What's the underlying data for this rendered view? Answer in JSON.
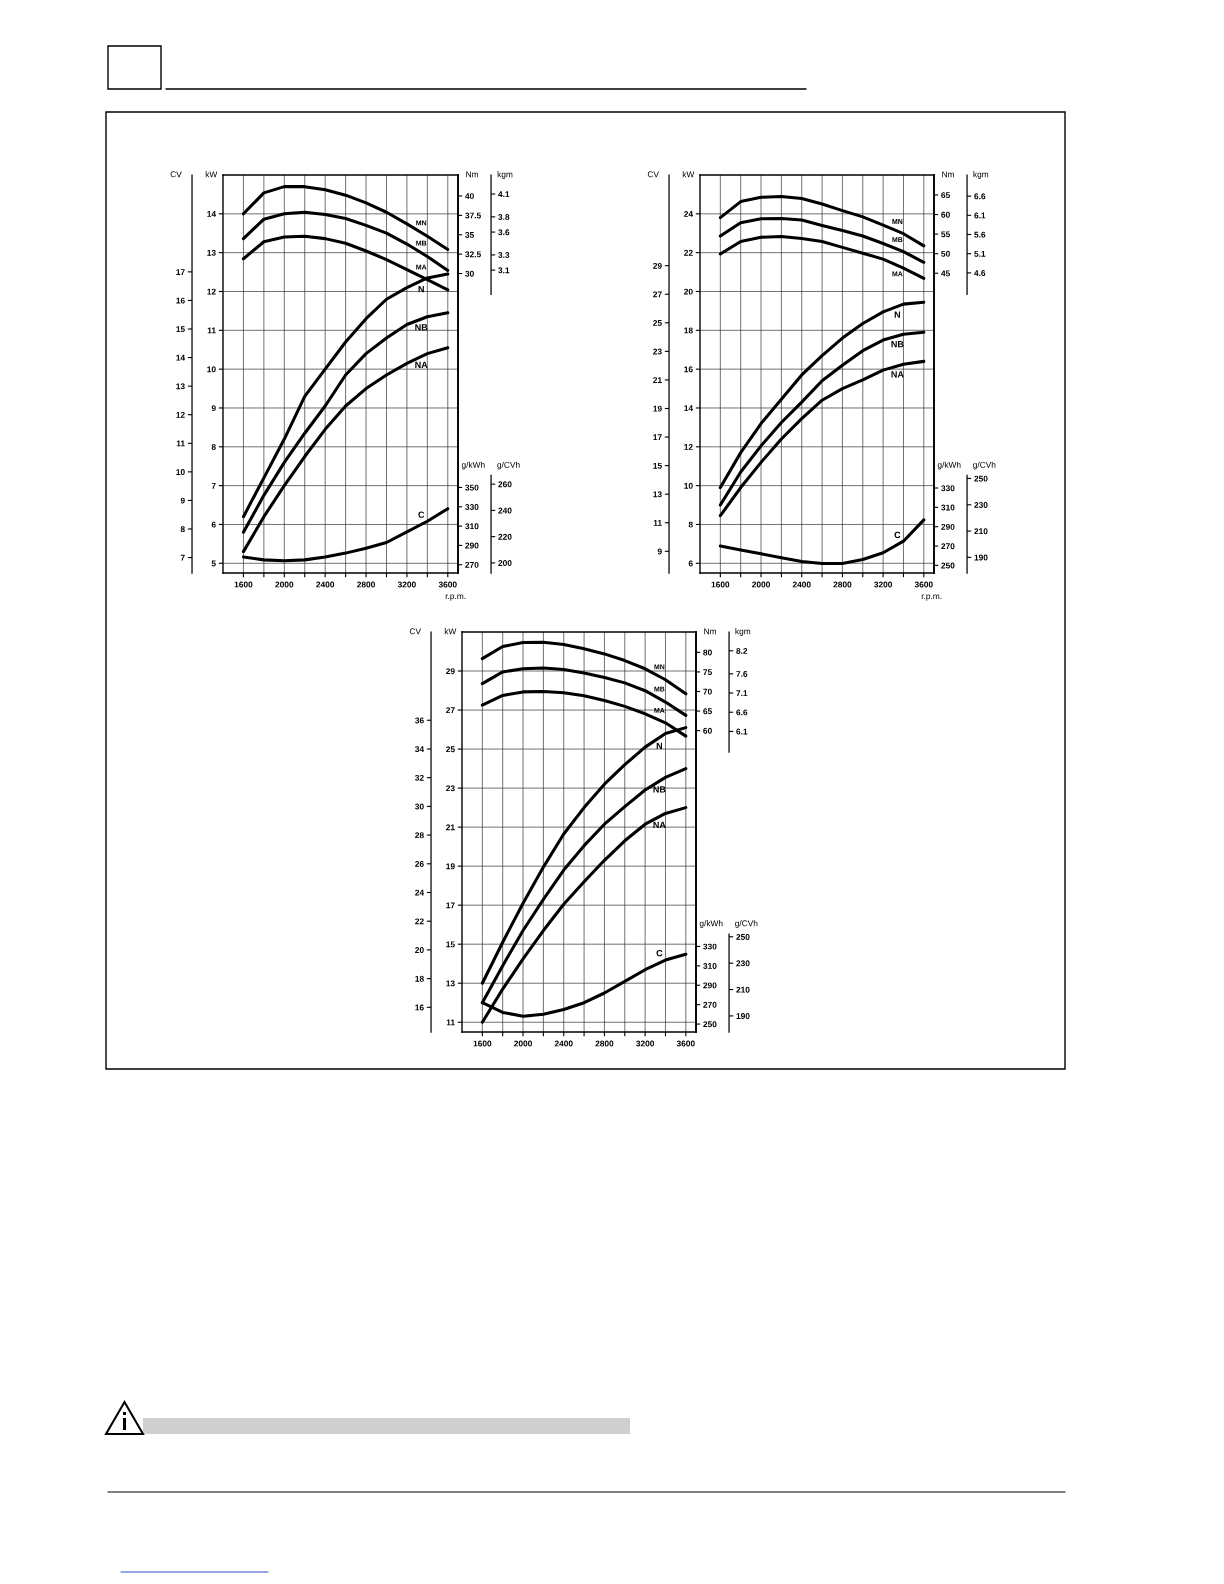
{
  "chart_data": [
    {
      "type": "line",
      "xlabel": "r.p.m.",
      "ylabel": "kW",
      "y2label": "CV",
      "x": [
        1600,
        1800,
        2000,
        2200,
        2400,
        2600,
        2800,
        3000,
        3200,
        3400,
        3600
      ],
      "xlim": [
        1400,
        3700
      ],
      "xticks": [
        1600,
        {
          "value": 1800,
          "label": null
        },
        2000,
        {
          "value": 2200,
          "label": null
        },
        2400,
        {
          "value": 2600,
          "label": null
        },
        2800,
        {
          "value": 3000,
          "label": null
        },
        3200,
        {
          "value": 3400,
          "label": null
        },
        3600
      ],
      "ylim": [
        4.75,
        15
      ],
      "yticks": [
        5,
        6,
        7,
        8,
        9,
        10,
        11,
        12,
        13,
        14
      ],
      "y2lim": [
        6.46,
        20.39
      ],
      "y2ticks": [
        7,
        8,
        9,
        10,
        11,
        12,
        13,
        14,
        15,
        16,
        17
      ],
      "grid": true,
      "series": [
        {
          "name": "N",
          "color": "#000000",
          "values": [
            6.2,
            7.2,
            8.2,
            9.3,
            10.0,
            10.7,
            11.3,
            11.8,
            12.1,
            12.35,
            12.45
          ]
        },
        {
          "name": "NB",
          "color": "#000000",
          "values": [
            5.8,
            6.75,
            7.6,
            8.35,
            9.05,
            9.85,
            10.4,
            10.8,
            11.15,
            11.35,
            11.45
          ]
        },
        {
          "name": "NA",
          "color": "#000000",
          "values": [
            5.3,
            6.2,
            7.0,
            7.75,
            8.45,
            9.05,
            9.5,
            9.85,
            10.15,
            10.4,
            10.55
          ]
        }
      ]
    },
    {
      "type": "line",
      "y2label": "Nm",
      "y3label": "kgm",
      "x": [
        1600,
        1800,
        2000,
        2200,
        2400,
        2600,
        2800,
        3000,
        3200,
        3400,
        3600
      ],
      "xlim": [
        1400,
        3700
      ],
      "tick_labels": "y",
      "y2lim": [
        -8.6,
        42.7
      ],
      "y2ticks": [
        30,
        32.5,
        35,
        37.5,
        40
      ],
      "y3lim": [
        -0.88,
        4.35
      ],
      "y3ticks": [
        3.1,
        3.3,
        3.6,
        3.8,
        4.1
      ],
      "series": [
        {
          "name": "MN",
          "axis": "y2",
          "color": "#000000",
          "values": [
            37.7,
            40.4,
            41.2,
            41.2,
            40.8,
            40.1,
            39.1,
            37.9,
            36.4,
            34.8,
            33.1
          ]
        },
        {
          "name": "MB",
          "axis": "y2",
          "color": "#000000",
          "values": [
            34.5,
            37.0,
            37.7,
            37.9,
            37.6,
            37.1,
            36.2,
            35.2,
            33.8,
            32.2,
            30.4
          ]
        },
        {
          "name": "MA",
          "axis": "y2",
          "color": "#000000",
          "values": [
            31.9,
            34.1,
            34.7,
            34.8,
            34.5,
            33.9,
            32.9,
            31.8,
            30.5,
            29.2,
            27.9
          ]
        }
      ]
    },
    {
      "type": "line",
      "y2label": "g/kWh",
      "y3label": "g/CVh",
      "x": [
        1600,
        1800,
        2000,
        2200,
        2400,
        2600,
        2800,
        3000,
        3200,
        3400,
        3600
      ],
      "xlim": [
        1400,
        3700
      ],
      "tick_labels": "y",
      "y2lim": [
        261.4,
        673.7
      ],
      "y2ticks": [
        270,
        290,
        310,
        330,
        350
      ],
      "y3lim": [
        192.3,
        495.5
      ],
      "y3ticks": [
        200,
        220,
        240,
        260
      ],
      "series": [
        {
          "name": "C",
          "axis": "y2",
          "color": "#000000",
          "values": [
            278,
            275,
            274,
            275,
            278,
            282,
            287,
            293,
            304,
            315,
            328
          ]
        }
      ]
    },
    {
      "type": "line",
      "xlabel": "r.p.m.",
      "ylabel": "kW",
      "y2label": "CV",
      "x": [
        1600,
        1800,
        2000,
        2200,
        2400,
        2600,
        2800,
        3000,
        3200,
        3400,
        3600
      ],
      "xlim": [
        1400,
        3700
      ],
      "xticks": [
        1600,
        {
          "value": 1800,
          "label": null
        },
        2000,
        {
          "value": 2200,
          "label": null
        },
        2400,
        {
          "value": 2600,
          "label": null
        },
        2800,
        {
          "value": 3000,
          "label": null
        },
        3200,
        {
          "value": 3400,
          "label": null
        },
        3600
      ],
      "ylim": [
        5.5,
        26
      ],
      "yticks": [
        6,
        8,
        10,
        12,
        14,
        16,
        18,
        20,
        22,
        24
      ],
      "y2lim": [
        7.48,
        35.35
      ],
      "y2ticks": [
        9,
        11,
        13,
        15,
        17,
        19,
        21,
        23,
        25,
        27,
        29
      ],
      "grid": true,
      "series": [
        {
          "name": "N",
          "color": "#000000",
          "values": [
            9.9,
            11.7,
            13.2,
            14.45,
            15.7,
            16.7,
            17.6,
            18.35,
            18.95,
            19.35,
            19.45
          ]
        },
        {
          "name": "NB",
          "color": "#000000",
          "values": [
            9.0,
            10.7,
            12.05,
            13.25,
            14.3,
            15.4,
            16.2,
            16.95,
            17.5,
            17.8,
            17.9
          ]
        },
        {
          "name": "NA",
          "color": "#000000",
          "values": [
            8.45,
            9.9,
            11.2,
            12.4,
            13.45,
            14.4,
            15.0,
            15.45,
            15.95,
            16.25,
            16.4
          ]
        }
      ]
    },
    {
      "type": "line",
      "y2label": "Nm",
      "y3label": "kgm",
      "x": [
        1600,
        1800,
        2000,
        2200,
        2400,
        2600,
        2800,
        3000,
        3200,
        3400,
        3600
      ],
      "xlim": [
        1400,
        3700
      ],
      "tick_labels": "y",
      "y2lim": [
        -31.6,
        70.1
      ],
      "y2ticks": [
        45,
        50,
        55,
        60,
        65
      ],
      "y3lim": [
        -3.22,
        7.15
      ],
      "y3ticks": [
        4.6,
        5.1,
        5.6,
        6.1,
        6.6
      ],
      "series": [
        {
          "name": "MN",
          "axis": "y2",
          "color": "#000000",
          "values": [
            59.2,
            63.3,
            64.4,
            64.6,
            64.1,
            62.7,
            61.0,
            59.4,
            57.3,
            55.1,
            52.0
          ]
        },
        {
          "name": "MB",
          "axis": "y2",
          "color": "#000000",
          "values": [
            54.5,
            57.9,
            58.9,
            59.0,
            58.6,
            57.2,
            55.9,
            54.5,
            52.6,
            50.5,
            47.8
          ]
        },
        {
          "name": "MA",
          "axis": "y2",
          "color": "#000000",
          "values": [
            49.9,
            53.1,
            54.2,
            54.4,
            53.9,
            53.1,
            51.6,
            50.1,
            48.6,
            46.3,
            43.7
          ]
        }
      ]
    },
    {
      "type": "line",
      "y2label": "g/kWh",
      "y3label": "g/CVh",
      "x": [
        1600,
        1800,
        2000,
        2200,
        2400,
        2600,
        2800,
        3000,
        3200,
        3400,
        3600
      ],
      "xlim": [
        1400,
        3700
      ],
      "tick_labels": "y",
      "y2lim": [
        242.1,
        653.8
      ],
      "y2ticks": [
        250,
        270,
        290,
        310,
        330
      ],
      "y3lim": [
        178.1,
        480.9
      ],
      "y3ticks": [
        190,
        210,
        230,
        250
      ],
      "series": [
        {
          "name": "C",
          "axis": "y2",
          "color": "#000000",
          "values": [
            270,
            266,
            262,
            258,
            254,
            252,
            252,
            256,
            263,
            275,
            297
          ]
        }
      ]
    },
    {
      "type": "line",
      "ylabel": "kW",
      "y2label": "CV",
      "x": [
        1600,
        1800,
        2000,
        2200,
        2400,
        2600,
        2800,
        3000,
        3200,
        3400,
        3600
      ],
      "xlim": [
        1400,
        3700
      ],
      "xticks": [
        1600,
        {
          "value": 1800,
          "label": null
        },
        2000,
        {
          "value": 2200,
          "label": null
        },
        2400,
        {
          "value": 2600,
          "label": null
        },
        2800,
        {
          "value": 3000,
          "label": null
        },
        3200,
        {
          "value": 3400,
          "label": null
        },
        3600
      ],
      "ylim": [
        10.5,
        31
      ],
      "yticks": [
        11,
        13,
        15,
        17,
        19,
        21,
        23,
        25,
        27,
        29
      ],
      "y2lim": [
        14.28,
        42.15
      ],
      "y2ticks": [
        16,
        18,
        20,
        22,
        24,
        26,
        28,
        30,
        32,
        34,
        36
      ],
      "grid": true,
      "series": [
        {
          "name": "N",
          "color": "#000000",
          "values": [
            13.0,
            15.1,
            17.1,
            18.95,
            20.65,
            22.0,
            23.2,
            24.2,
            25.1,
            25.8,
            26.1
          ]
        },
        {
          "name": "NB",
          "color": "#000000",
          "values": [
            12.0,
            13.9,
            15.7,
            17.3,
            18.8,
            20.05,
            21.15,
            22.05,
            22.9,
            23.55,
            24.0
          ]
        },
        {
          "name": "NA",
          "color": "#000000",
          "values": [
            11.0,
            12.7,
            14.25,
            15.7,
            17.05,
            18.2,
            19.3,
            20.3,
            21.15,
            21.7,
            22.0
          ]
        }
      ]
    },
    {
      "type": "line",
      "y2label": "Nm",
      "y3label": "kgm",
      "x": [
        1600,
        1800,
        2000,
        2200,
        2400,
        2600,
        2800,
        3000,
        3200,
        3400,
        3600
      ],
      "xlim": [
        1400,
        3700
      ],
      "tick_labels": "y",
      "y2lim": [
        -17.0,
        85.2
      ],
      "y2ticks": [
        60,
        65,
        70,
        75,
        80
      ],
      "y3lim": [
        -1.73,
        8.69
      ],
      "y3ticks": [
        6.1,
        6.6,
        7.1,
        7.6,
        8.2
      ],
      "series": [
        {
          "name": "MN",
          "axis": "y2",
          "color": "#000000",
          "values": [
            78.4,
            81.5,
            82.5,
            82.6,
            82.0,
            80.9,
            79.6,
            77.9,
            75.8,
            73.0,
            69.4
          ]
        },
        {
          "name": "MB",
          "axis": "y2",
          "color": "#000000",
          "values": [
            72.0,
            75.0,
            75.8,
            76.0,
            75.6,
            74.7,
            73.6,
            72.2,
            70.2,
            67.3,
            63.9
          ]
        },
        {
          "name": "MA",
          "axis": "y2",
          "color": "#000000",
          "values": [
            66.5,
            69.0,
            69.9,
            70.0,
            69.7,
            68.9,
            67.7,
            66.2,
            64.3,
            62.0,
            58.6
          ]
        }
      ]
    },
    {
      "type": "line",
      "y2label": "g/kWh",
      "y3label": "g/CVh",
      "x": [
        1600,
        1800,
        2000,
        2200,
        2400,
        2600,
        2800,
        3000,
        3200,
        3400,
        3600
      ],
      "xlim": [
        1400,
        3700
      ],
      "tick_labels": "y",
      "y2lim": [
        241.8,
        654.1
      ],
      "y2ticks": [
        250,
        270,
        290,
        310,
        330
      ],
      "y3lim": [
        177.8,
        481.1
      ],
      "y3ticks": [
        190,
        210,
        230,
        250
      ],
      "series": [
        {
          "name": "C",
          "axis": "y2",
          "color": "#000000",
          "values": [
            272,
            262,
            258,
            260,
            265,
            272,
            282,
            294,
            306,
            316,
            322
          ]
        }
      ]
    }
  ]
}
